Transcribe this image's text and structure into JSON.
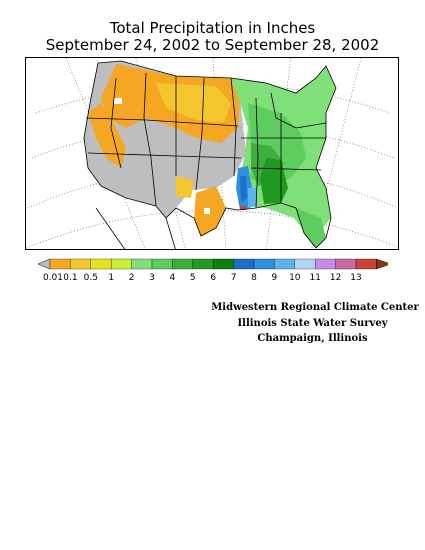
{
  "title": {
    "line1": "Total Precipitation in Inches",
    "line2": "September 24, 2002 to September 28, 2002"
  },
  "legend": {
    "labels": [
      "0.01",
      "0.1",
      "0.5",
      "1",
      "2",
      "3",
      "4",
      "5",
      "6",
      "7",
      "8",
      "9",
      "10",
      "11",
      "12",
      "13"
    ],
    "colors": {
      "below": "#bebebe",
      "bins": [
        "#f5a623",
        "#f2c62c",
        "#e6e21e",
        "#c9ef37",
        "#7fe07a",
        "#5fcc5f",
        "#3fae3f",
        "#1f9a1f",
        "#0a800a",
        "#1e6fc8",
        "#2f8fe0",
        "#5ab4f0",
        "#b4d6f5",
        "#c98ae8",
        "#c66aa0",
        "#c8443a"
      ],
      "above": "#8a3a10"
    }
  },
  "credits": {
    "line1": "Midwestern Regional Climate Center",
    "line2": "Illinois State Water Survey",
    "line3": "Champaign, Illinois"
  }
}
